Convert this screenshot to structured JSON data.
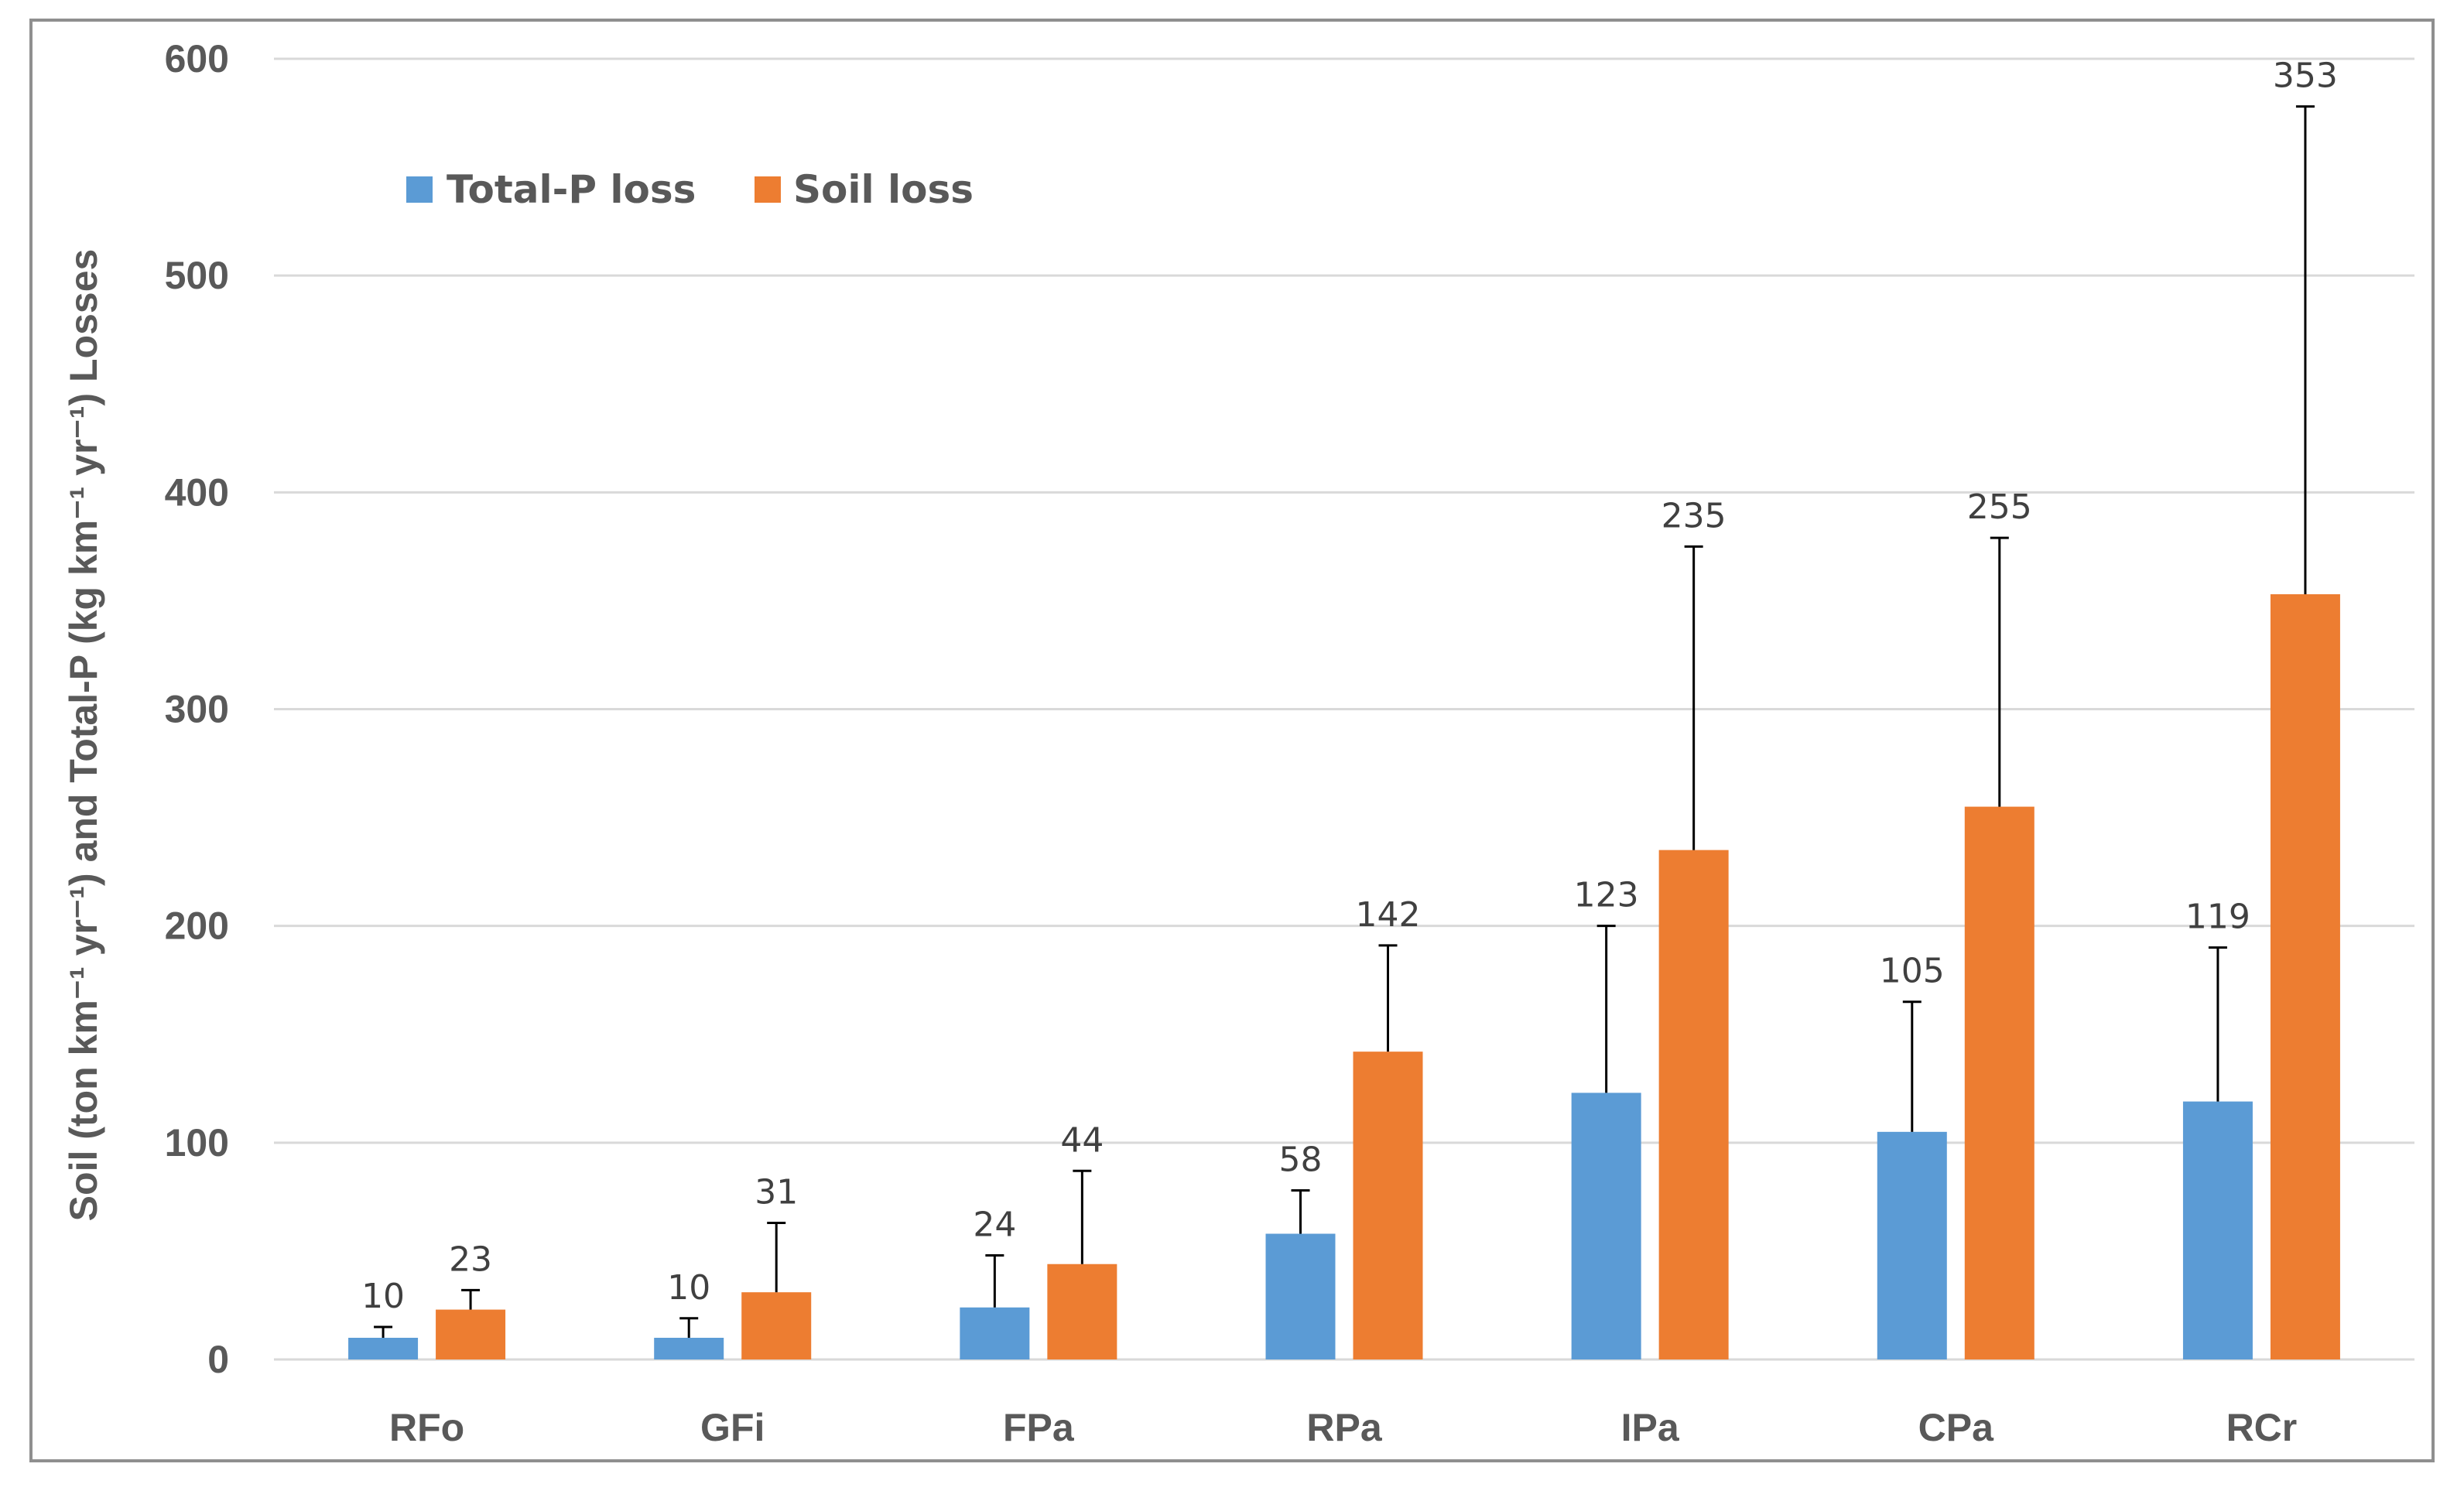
{
  "chart_data": {
    "type": "bar",
    "title": "",
    "xlabel": "",
    "ylabel": "Soil (ton km⁻¹ yr⁻¹) and Total-P (kg km⁻¹ yr⁻¹) Losses",
    "categories": [
      "RFo",
      "GFi",
      "FPa",
      "RPa",
      "IPa",
      "CPa",
      "RCr"
    ],
    "ylim": [
      0,
      600
    ],
    "yticks": [
      0,
      100,
      200,
      300,
      400,
      500,
      600
    ],
    "grid": true,
    "legend_position": "top-left",
    "series": [
      {
        "name": "Total-P loss",
        "color": "#5b9bd5",
        "values": [
          10,
          10,
          24,
          58,
          123,
          105,
          119
        ],
        "error_upper": [
          15,
          19,
          48,
          78,
          200,
          165,
          190
        ],
        "labels": [
          "10",
          "10",
          "24",
          "58",
          "123",
          "105",
          "119"
        ]
      },
      {
        "name": "Soil loss",
        "color": "#ed7d31",
        "values": [
          23,
          31,
          44,
          142,
          235,
          255,
          353
        ],
        "error_upper": [
          32,
          63,
          87,
          191,
          375,
          379,
          578
        ],
        "labels": [
          "23",
          "31",
          "44",
          "142",
          "235",
          "255",
          "353"
        ]
      }
    ]
  }
}
